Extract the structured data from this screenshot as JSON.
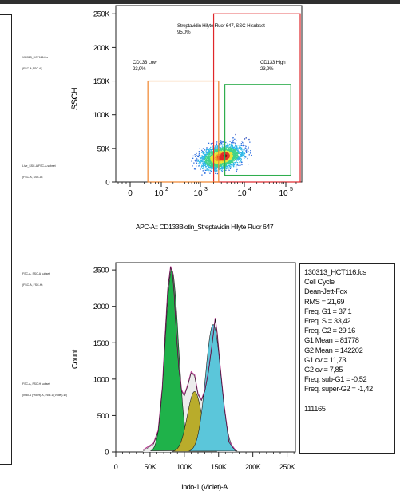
{
  "left_panel": {
    "labels": [
      [
        "130313_HCT116.fcs",
        "(FSC-A,SSC-A)"
      ],
      [
        "Live_SSC-A/FSC-A subset",
        "(FSC-A, SSC-A)"
      ],
      [
        "FSC-A, SSC-A subset",
        "(FSC-A, FSC-H)"
      ],
      [
        "FSC-A, FSC-H subset",
        "(Indo-1 (Violet)-A, Indo-1 (Violet)-W)"
      ]
    ]
  },
  "chart_data": [
    {
      "type": "scatter",
      "subtype": "density-dot-plot",
      "xlabel": "APC-A:: CD133Biotin_Streptavidin Hilyte Fluor 647",
      "ylabel": "SSCH",
      "x_scale": "biexponential",
      "x_ticks": [
        0,
        100,
        1000,
        10000,
        100000
      ],
      "x_tick_labels": [
        "0",
        "10",
        "10",
        "10",
        "10"
      ],
      "x_tick_exponents": [
        "",
        "2",
        "3",
        "4",
        "5"
      ],
      "y_ticks": [
        0,
        50000,
        100000,
        150000,
        200000,
        250000
      ],
      "y_tick_labels": [
        "0",
        "50K",
        "100K",
        "150K",
        "200K",
        "250K"
      ],
      "ylim": [
        0,
        262144
      ],
      "gates": [
        {
          "name": "Streptavidin Hilyte Fluor 647, SSC-H subset",
          "percent": "95,0%",
          "color": "#e0262a",
          "x_range": [
            2000,
            262144
          ],
          "y_range": [
            0,
            250000
          ]
        },
        {
          "name": "CD133 Low",
          "percent": "23,9%",
          "color": "#f0842c",
          "x_range": [
            30,
            2600
          ],
          "y_range": [
            0,
            150000
          ]
        },
        {
          "name": "CD133 High",
          "percent": "23,2%",
          "color": "#2fae4e",
          "x_range": [
            3600,
            140000
          ],
          "y_range": [
            10000,
            145000
          ]
        }
      ],
      "population_center": {
        "x": 3500,
        "y": 40000
      }
    },
    {
      "type": "area",
      "subtype": "cell-cycle-histogram",
      "xlabel": "Indo-1 (Violet)-A",
      "ylabel": "Count",
      "x_ticks": [
        0,
        50000,
        100000,
        150000,
        200000,
        250000
      ],
      "x_tick_labels": [
        "0",
        "50K",
        "100K",
        "150K",
        "200K",
        "250K"
      ],
      "y_ticks": [
        0,
        500,
        1000,
        1500,
        2000,
        2500
      ],
      "y_tick_labels": [
        "0",
        "500",
        "1000",
        "1500",
        "2000",
        "2500"
      ],
      "xlim": [
        0,
        262144
      ],
      "ylim": [
        0,
        2600
      ],
      "histogram": {
        "x": [
          40000,
          55000,
          62000,
          68000,
          72000,
          76000,
          80000,
          83000,
          85000,
          88000,
          92000,
          96000,
          100000,
          105000,
          110000,
          115000,
          120000,
          125000,
          130000,
          135000,
          140000,
          145000,
          148000,
          152000,
          158000,
          165000,
          175000
        ],
        "y": [
          30,
          120,
          300,
          900,
          1600,
          2250,
          2550,
          2450,
          2200,
          1700,
          1150,
          850,
          780,
          920,
          1100,
          1060,
          800,
          720,
          850,
          1100,
          1450,
          1840,
          1640,
          1200,
          650,
          150,
          20
        ]
      },
      "model_components": [
        {
          "name": "G1",
          "color": "#1fb24a",
          "mean": 81778,
          "cv": 11.73,
          "peak": 2500
        },
        {
          "name": "S",
          "color": "#b9ac2b",
          "mean": 115000,
          "peak": 830
        },
        {
          "name": "G2",
          "color": "#5bc6da",
          "mean": 142202,
          "cv": 7.85,
          "peak": 1750
        }
      ]
    }
  ],
  "stats": {
    "lines": [
      "130313_HCT116.fcs",
      "Cell Cycle",
      "Dean-Jett-Fox",
      "RMS = 21,69",
      "Freq. G1 = 37,1",
      "Freq. S = 33,42",
      "Freq. G2 = 29,16",
      "G1 Mean = 81778",
      "G2 Mean = 142202",
      "G1 cv = 11,73",
      "G2 cv = 7,85",
      "Freq. sub-G1 = -0,52",
      "Freq. super-G2 = -1,42"
    ],
    "footer": "111165"
  },
  "colors": {
    "gate_outer": "#e0262a",
    "gate_low": "#f0842c",
    "gate_high": "#2fae4e",
    "fit_line": "#b5338e"
  }
}
